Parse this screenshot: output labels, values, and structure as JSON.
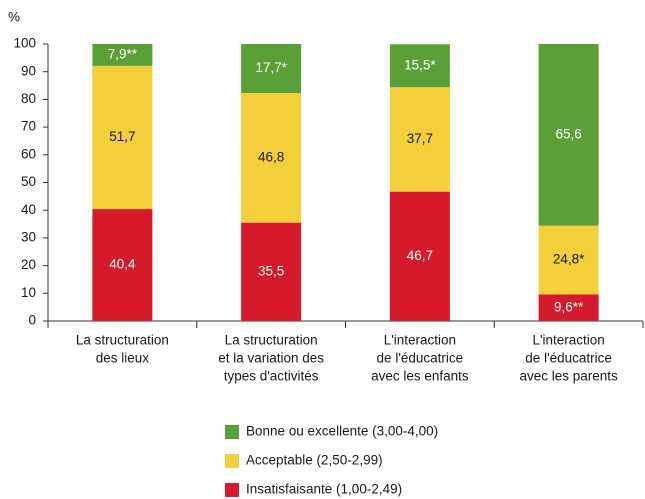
{
  "chart_data": {
    "type": "stacked_bar",
    "y_unit_label": "%",
    "categories": [
      [
        "La structuration",
        "des lieux"
      ],
      [
        "La structuration",
        "et la variation des",
        "types d'activités"
      ],
      [
        "L'interaction",
        "de l'éducatrice",
        "avec les enfants"
      ],
      [
        "L'interaction",
        "de l'éducatrice",
        "avec les parents"
      ]
    ],
    "series": [
      {
        "name": "Insatisfaisante (1,00-2,49)",
        "color": "#d51a2c",
        "label_color": "#ffffff",
        "values": [
          40.4,
          35.5,
          46.7,
          9.6
        ],
        "value_labels": [
          "40,4",
          "35,5",
          "46,7",
          "9,6**"
        ]
      },
      {
        "name": "Acceptable (2,50-2,99)",
        "color": "#f3cf3b",
        "label_color": "#1a1a1a",
        "values": [
          51.7,
          46.8,
          37.7,
          24.8
        ],
        "value_labels": [
          "51,7",
          "46,8",
          "37,7",
          "24,8*"
        ]
      },
      {
        "name": "Bonne ou excellente (3,00-4,00)",
        "color": "#5a9f38",
        "label_color": "#ffffff",
        "values": [
          7.9,
          17.7,
          15.5,
          65.6
        ],
        "value_labels": [
          "7,9**",
          "17,7*",
          "15,5*",
          "65,6"
        ]
      }
    ],
    "ylim": [
      0,
      100
    ],
    "yticks": [
      0,
      10,
      20,
      30,
      40,
      50,
      60,
      70,
      80,
      90,
      100
    ],
    "grid": false
  }
}
